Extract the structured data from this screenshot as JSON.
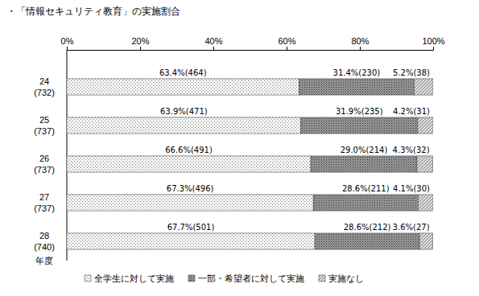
{
  "chart_data": {
    "type": "bar",
    "orientation": "horizontal",
    "stacked": true,
    "data_labels": true,
    "grid": false,
    "legend": "bottom",
    "title": "・「情報セキュリティ教育」の実施割合",
    "y_label": "年度",
    "categories": [
      "24\n(732)",
      "25\n(737)",
      "26\n(737)",
      "27\n(737)",
      "28\n(740)"
    ],
    "xlim": [
      0,
      100
    ],
    "xticks": [
      {
        "value": 0,
        "label": "0%"
      },
      {
        "value": 20,
        "label": "20%"
      },
      {
        "value": 40,
        "label": "40%"
      },
      {
        "value": 60,
        "label": "60%"
      },
      {
        "value": 80,
        "label": "80%"
      },
      {
        "value": 100,
        "label": "100%"
      }
    ],
    "series": [
      {
        "name": "全学生に対して実施",
        "color": "#f4f4f4",
        "values": [
          63.4,
          63.9,
          66.6,
          67.3,
          67.7
        ],
        "value_labels": [
          "63.4%(464)",
          "63.9%(471)",
          "66.6%(491)",
          "67.3%(496)",
          "67.7%(501)"
        ]
      },
      {
        "name": "一部・希望者に対して実施",
        "color": "#9a9a9a",
        "values": [
          31.4,
          31.9,
          29.0,
          28.6,
          28.6
        ],
        "value_labels": [
          "31.4%(230)",
          "31.9%(235)",
          "29.0%(214)",
          "28.6%(211)",
          "28.6%(212)"
        ]
      },
      {
        "name": "実施なし",
        "color": "#dcdcdc",
        "values": [
          5.2,
          4.2,
          4.3,
          4.1,
          3.6
        ],
        "value_labels": [
          "5.2%(38)",
          "4.2%(31)",
          "4.3%(32)",
          "4.1%(30)",
          "3.6%(27)"
        ]
      }
    ]
  }
}
